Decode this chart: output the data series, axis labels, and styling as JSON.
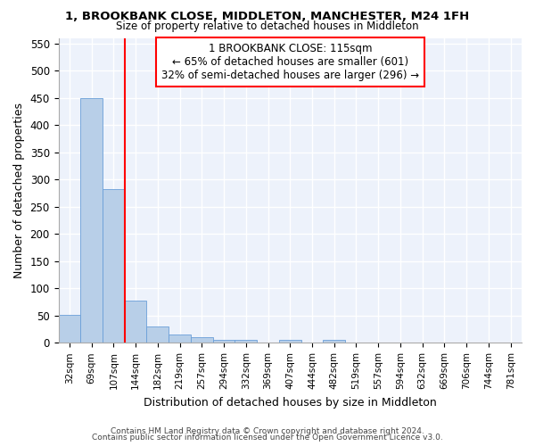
{
  "title1": "1, BROOKBANK CLOSE, MIDDLETON, MANCHESTER, M24 1FH",
  "title2": "Size of property relative to detached houses in Middleton",
  "xlabel": "Distribution of detached houses by size in Middleton",
  "ylabel": "Number of detached properties",
  "categories": [
    "32sqm",
    "69sqm",
    "107sqm",
    "144sqm",
    "182sqm",
    "219sqm",
    "257sqm",
    "294sqm",
    "332sqm",
    "369sqm",
    "407sqm",
    "444sqm",
    "482sqm",
    "519sqm",
    "557sqm",
    "594sqm",
    "632sqm",
    "669sqm",
    "706sqm",
    "744sqm",
    "781sqm"
  ],
  "values": [
    52,
    450,
    283,
    77,
    30,
    15,
    10,
    5,
    5,
    0,
    5,
    0,
    5,
    0,
    0,
    0,
    0,
    0,
    0,
    0,
    0
  ],
  "bar_color": "#b8cfe8",
  "bar_edge_color": "#6a9fd8",
  "red_line_index": 2.5,
  "annotation_line1": "1 BROOKBANK CLOSE: 115sqm",
  "annotation_line2": "← 65% of detached houses are smaller (601)",
  "annotation_line3": "32% of semi-detached houses are larger (296) →",
  "ylim": [
    0,
    560
  ],
  "yticks": [
    0,
    50,
    100,
    150,
    200,
    250,
    300,
    350,
    400,
    450,
    500,
    550
  ],
  "footer1": "Contains HM Land Registry data © Crown copyright and database right 2024.",
  "footer2": "Contains public sector information licensed under the Open Government Licence v3.0.",
  "background_color": "#edf2fb"
}
